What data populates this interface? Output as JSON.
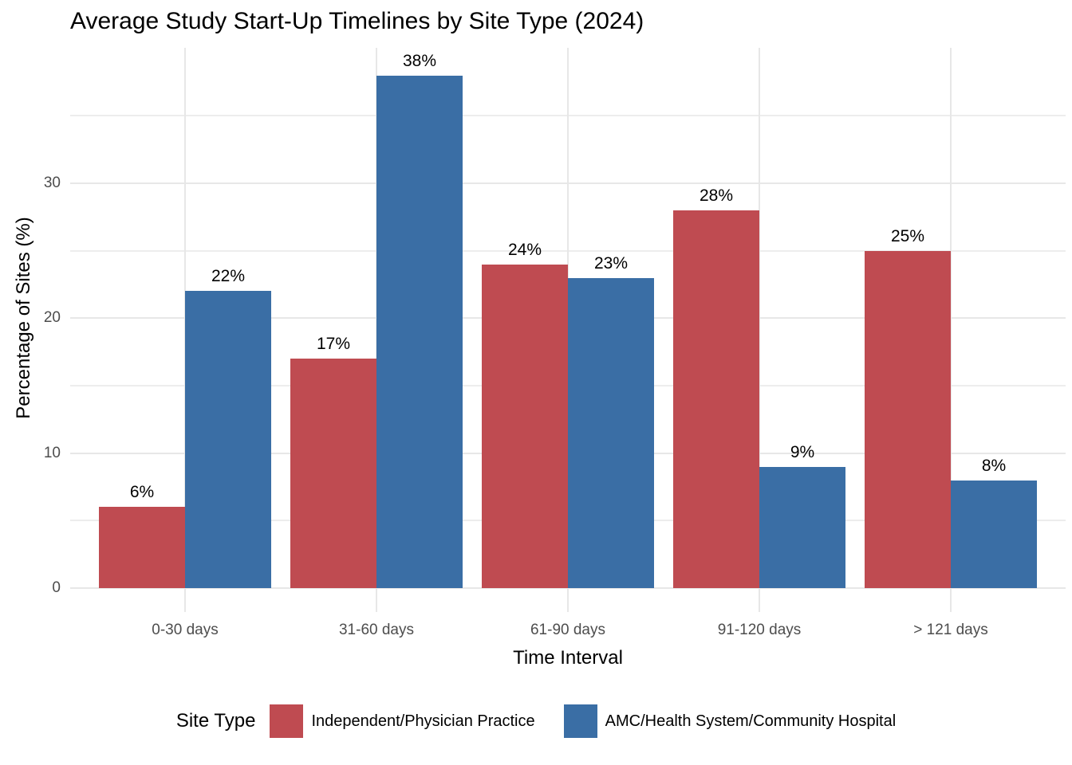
{
  "title": "Average Study Start-Up Timelines by Site Type (2024)",
  "chart_data": {
    "type": "bar",
    "title": "Average Study Start-Up Timelines by Site Type (2024)",
    "categories": [
      "0-30 days",
      "31-60 days",
      "61-90 days",
      "91-120 days",
      "> 121 days"
    ],
    "series": [
      {
        "name": "Independent/Physician Practice",
        "color": "#BF4B51",
        "values": [
          6,
          17,
          24,
          28,
          25
        ]
      },
      {
        "name": "AMC/Health System/Community Hospital",
        "color": "#3A6EA5",
        "values": [
          22,
          38,
          23,
          9,
          8
        ]
      }
    ],
    "value_labels": [
      [
        "6%",
        "17%",
        "24%",
        "28%",
        "25%"
      ],
      [
        "22%",
        "38%",
        "23%",
        "9%",
        "8%"
      ]
    ],
    "xlabel": "Time Interval",
    "ylabel": "Percentage of Sites (%)",
    "ylim": [
      0,
      40
    ],
    "yticks": [
      0,
      10,
      20,
      30
    ],
    "minor_gridlines": [
      5,
      15,
      25,
      35
    ],
    "grid": true,
    "legend_position": "bottom",
    "legend_title": "Site Type",
    "colors": {
      "background": "#FFFFFF",
      "gridline": "#E7E7E7",
      "tick_label": "#4D4D4D",
      "text": "#000000"
    }
  }
}
